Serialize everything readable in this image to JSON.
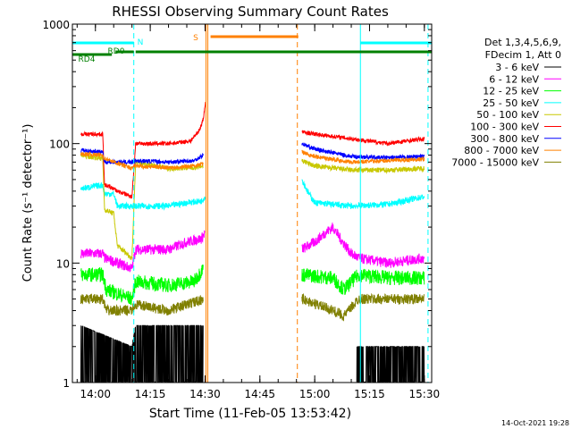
{
  "chart_data": {
    "type": "line",
    "title": "RHESSI Observing Summary Count Rates",
    "xlabel": "Start Time (11-Feb-05 13:53:42)",
    "ylabel": "Count Rate (s⁻¹ detector⁻¹)",
    "y_scale": "log",
    "ylim": [
      1,
      1000
    ],
    "x_range": [
      "13:53:42",
      "15:32:00"
    ],
    "x_ticks": [
      "14:00",
      "14:15",
      "14:30",
      "14:45",
      "15:00",
      "15:15",
      "15:30"
    ],
    "y_ticks": [
      "1",
      "10",
      "100",
      "1000"
    ],
    "timestamp": "14-Oct-2021 19:28",
    "legend_header": [
      "Det 1,3,4,5,6,9,",
      "FDecim 1, Att 0"
    ],
    "flags": [
      {
        "label": "N",
        "color": "#00ffff",
        "segments": [
          [
            "13:53:42",
            "14:10:30"
          ],
          [
            "15:12:30",
            "15:32:00"
          ]
        ]
      },
      {
        "label": "S",
        "color": "#ff8000",
        "segments": [
          [
            "14:31:30",
            "14:55:30"
          ]
        ]
      },
      {
        "label": "RD0",
        "color": "#008000",
        "segments": [
          [
            "14:05:30",
            "14:10:30"
          ],
          [
            "14:11:00",
            "15:32:00"
          ]
        ]
      },
      {
        "label": "RD4",
        "color": "#008000",
        "segments": [
          [
            "13:53:42",
            "14:04:30"
          ]
        ]
      }
    ],
    "vertical_markers": [
      {
        "time": "13:53:42",
        "color": "#00ffff",
        "style": "solid"
      },
      {
        "time": "14:10:30",
        "color": "#00ffff",
        "style": "dashed"
      },
      {
        "time": "14:30:45",
        "color": "#ff8000",
        "style": "solid"
      },
      {
        "time": "14:55:15",
        "color": "#ff8000",
        "style": "dashed"
      },
      {
        "time": "15:12:30",
        "color": "#00ffff",
        "style": "solid"
      },
      {
        "time": "15:31:00",
        "color": "#00ffff",
        "style": "dashed"
      }
    ],
    "series": [
      {
        "name": "3 - 6 keV",
        "color": "#000000",
        "noise": 0.5,
        "pre": [
          [
            "13:56:00",
            3
          ],
          [
            "14:10:00",
            2
          ],
          [
            "14:11:00",
            3
          ],
          [
            "14:20:00",
            3
          ],
          [
            "14:27:00",
            3
          ],
          [
            "14:29:30",
            3
          ]
        ],
        "post": [
          [
            "15:11:30",
            2
          ],
          [
            "15:20:00",
            2
          ],
          [
            "15:30:00",
            2
          ]
        ]
      },
      {
        "name": "6 - 12 keV",
        "color": "#ff00ff",
        "noise": 0.1,
        "pre": [
          [
            "13:56:00",
            12
          ],
          [
            "14:02:00",
            12
          ],
          [
            "14:02:30",
            11
          ],
          [
            "14:10:00",
            9
          ],
          [
            "14:11:00",
            13
          ],
          [
            "14:20:00",
            13
          ],
          [
            "14:25:00",
            15
          ],
          [
            "14:29:00",
            16
          ],
          [
            "14:30:00",
            18
          ]
        ],
        "post": [
          [
            "14:56:30",
            13
          ],
          [
            "15:00:00",
            15
          ],
          [
            "15:03:00",
            18
          ],
          [
            "15:05:00",
            20
          ],
          [
            "15:07:00",
            16
          ],
          [
            "15:10:00",
            12
          ],
          [
            "15:12:00",
            11
          ],
          [
            "15:20:00",
            10
          ],
          [
            "15:30:00",
            11
          ]
        ]
      },
      {
        "name": "12 - 25 keV",
        "color": "#00ff00",
        "noise": 0.14,
        "pre": [
          [
            "13:56:00",
            8
          ],
          [
            "14:02:00",
            8
          ],
          [
            "14:03:00",
            6
          ],
          [
            "14:10:00",
            5
          ],
          [
            "14:11:00",
            7
          ],
          [
            "14:20:00",
            6.5
          ],
          [
            "14:27:00",
            7
          ],
          [
            "14:29:30",
            9
          ]
        ],
        "post": [
          [
            "14:56:30",
            8
          ],
          [
            "15:05:00",
            7.5
          ],
          [
            "15:08:00",
            6
          ],
          [
            "15:12:00",
            8
          ],
          [
            "15:20:00",
            7.5
          ],
          [
            "15:30:00",
            7.5
          ]
        ]
      },
      {
        "name": "25 - 50 keV",
        "color": "#00ffff",
        "noise": 0.06,
        "pre": [
          [
            "13:56:00",
            42
          ],
          [
            "14:02:00",
            45
          ],
          [
            "14:02:30",
            38
          ],
          [
            "14:05:00",
            38
          ],
          [
            "14:06:00",
            30
          ],
          [
            "14:10:00",
            30
          ],
          [
            "14:11:00",
            30
          ],
          [
            "14:20:00",
            30
          ],
          [
            "14:25:00",
            32
          ],
          [
            "14:29:00",
            33
          ],
          [
            "14:30:00",
            36
          ]
        ],
        "post": [
          [
            "14:56:30",
            50
          ],
          [
            "14:58:00",
            40
          ],
          [
            "15:00:00",
            32
          ],
          [
            "15:10:00",
            30
          ],
          [
            "15:20:00",
            31
          ],
          [
            "15:30:00",
            36
          ]
        ]
      },
      {
        "name": "50 - 100 keV",
        "color": "#c8c800",
        "noise": 0.05,
        "pre": [
          [
            "13:56:00",
            80
          ],
          [
            "14:02:00",
            75
          ],
          [
            "14:02:30",
            28
          ],
          [
            "14:05:00",
            26
          ],
          [
            "14:06:00",
            14
          ],
          [
            "14:10:00",
            11
          ],
          [
            "14:11:00",
            70
          ],
          [
            "14:20:00",
            62
          ],
          [
            "14:27:00",
            63
          ],
          [
            "14:29:30",
            65
          ]
        ],
        "post": [
          [
            "14:56:30",
            72
          ],
          [
            "15:00:00",
            65
          ],
          [
            "15:10:00",
            60
          ],
          [
            "15:20:00",
            60
          ],
          [
            "15:30:00",
            62
          ]
        ]
      },
      {
        "name": "100 - 300 keV",
        "color": "#ff0000",
        "noise": 0.04,
        "pre": [
          [
            "13:56:00",
            120
          ],
          [
            "14:02:00",
            120
          ],
          [
            "14:02:30",
            45
          ],
          [
            "14:05:00",
            42
          ],
          [
            "14:06:00",
            40
          ],
          [
            "14:10:00",
            36
          ],
          [
            "14:11:00",
            100
          ],
          [
            "14:20:00",
            100
          ],
          [
            "14:26:00",
            105
          ],
          [
            "14:28:30",
            130
          ],
          [
            "14:29:30",
            160
          ],
          [
            "14:30:10",
            230
          ]
        ],
        "post": [
          [
            "14:56:30",
            125
          ],
          [
            "15:00:00",
            120
          ],
          [
            "15:10:00",
            110
          ],
          [
            "15:20:00",
            100
          ],
          [
            "15:30:00",
            110
          ]
        ]
      },
      {
        "name": "300 - 800 keV",
        "color": "#0000ff",
        "noise": 0.04,
        "pre": [
          [
            "13:56:00",
            88
          ],
          [
            "14:02:00",
            85
          ],
          [
            "14:02:30",
            70
          ],
          [
            "14:10:00",
            70
          ],
          [
            "14:11:00",
            72
          ],
          [
            "14:20:00",
            70
          ],
          [
            "14:27:00",
            72
          ],
          [
            "14:29:30",
            80
          ]
        ],
        "post": [
          [
            "14:56:30",
            100
          ],
          [
            "15:00:00",
            90
          ],
          [
            "15:10:00",
            78
          ],
          [
            "15:20:00",
            76
          ],
          [
            "15:30:00",
            78
          ]
        ]
      },
      {
        "name": "800 - 7000 keV",
        "color": "#ff8000",
        "noise": 0.04,
        "pre": [
          [
            "13:56:00",
            82
          ],
          [
            "14:02:00",
            80
          ],
          [
            "14:02:30",
            75
          ],
          [
            "14:10:00",
            62
          ],
          [
            "14:11:00",
            65
          ],
          [
            "14:20:00",
            63
          ],
          [
            "14:27:00",
            65
          ],
          [
            "14:29:30",
            68
          ]
        ],
        "post": [
          [
            "14:56:30",
            85
          ],
          [
            "15:00:00",
            78
          ],
          [
            "15:10:00",
            70
          ],
          [
            "15:20:00",
            72
          ],
          [
            "15:30:00",
            74
          ]
        ]
      },
      {
        "name": "7000 - 15000 keV",
        "color": "#808000",
        "noise": 0.1,
        "pre": [
          [
            "13:56:00",
            5
          ],
          [
            "14:02:00",
            5
          ],
          [
            "14:03:00",
            4
          ],
          [
            "14:10:00",
            4
          ],
          [
            "14:11:00",
            4.5
          ],
          [
            "14:20:00",
            4
          ],
          [
            "14:29:30",
            5
          ]
        ],
        "post": [
          [
            "14:56:30",
            5
          ],
          [
            "15:05:00",
            4
          ],
          [
            "15:08:00",
            3.6
          ],
          [
            "15:12:00",
            5
          ],
          [
            "15:20:00",
            5
          ],
          [
            "15:30:00",
            5
          ]
        ]
      }
    ]
  }
}
